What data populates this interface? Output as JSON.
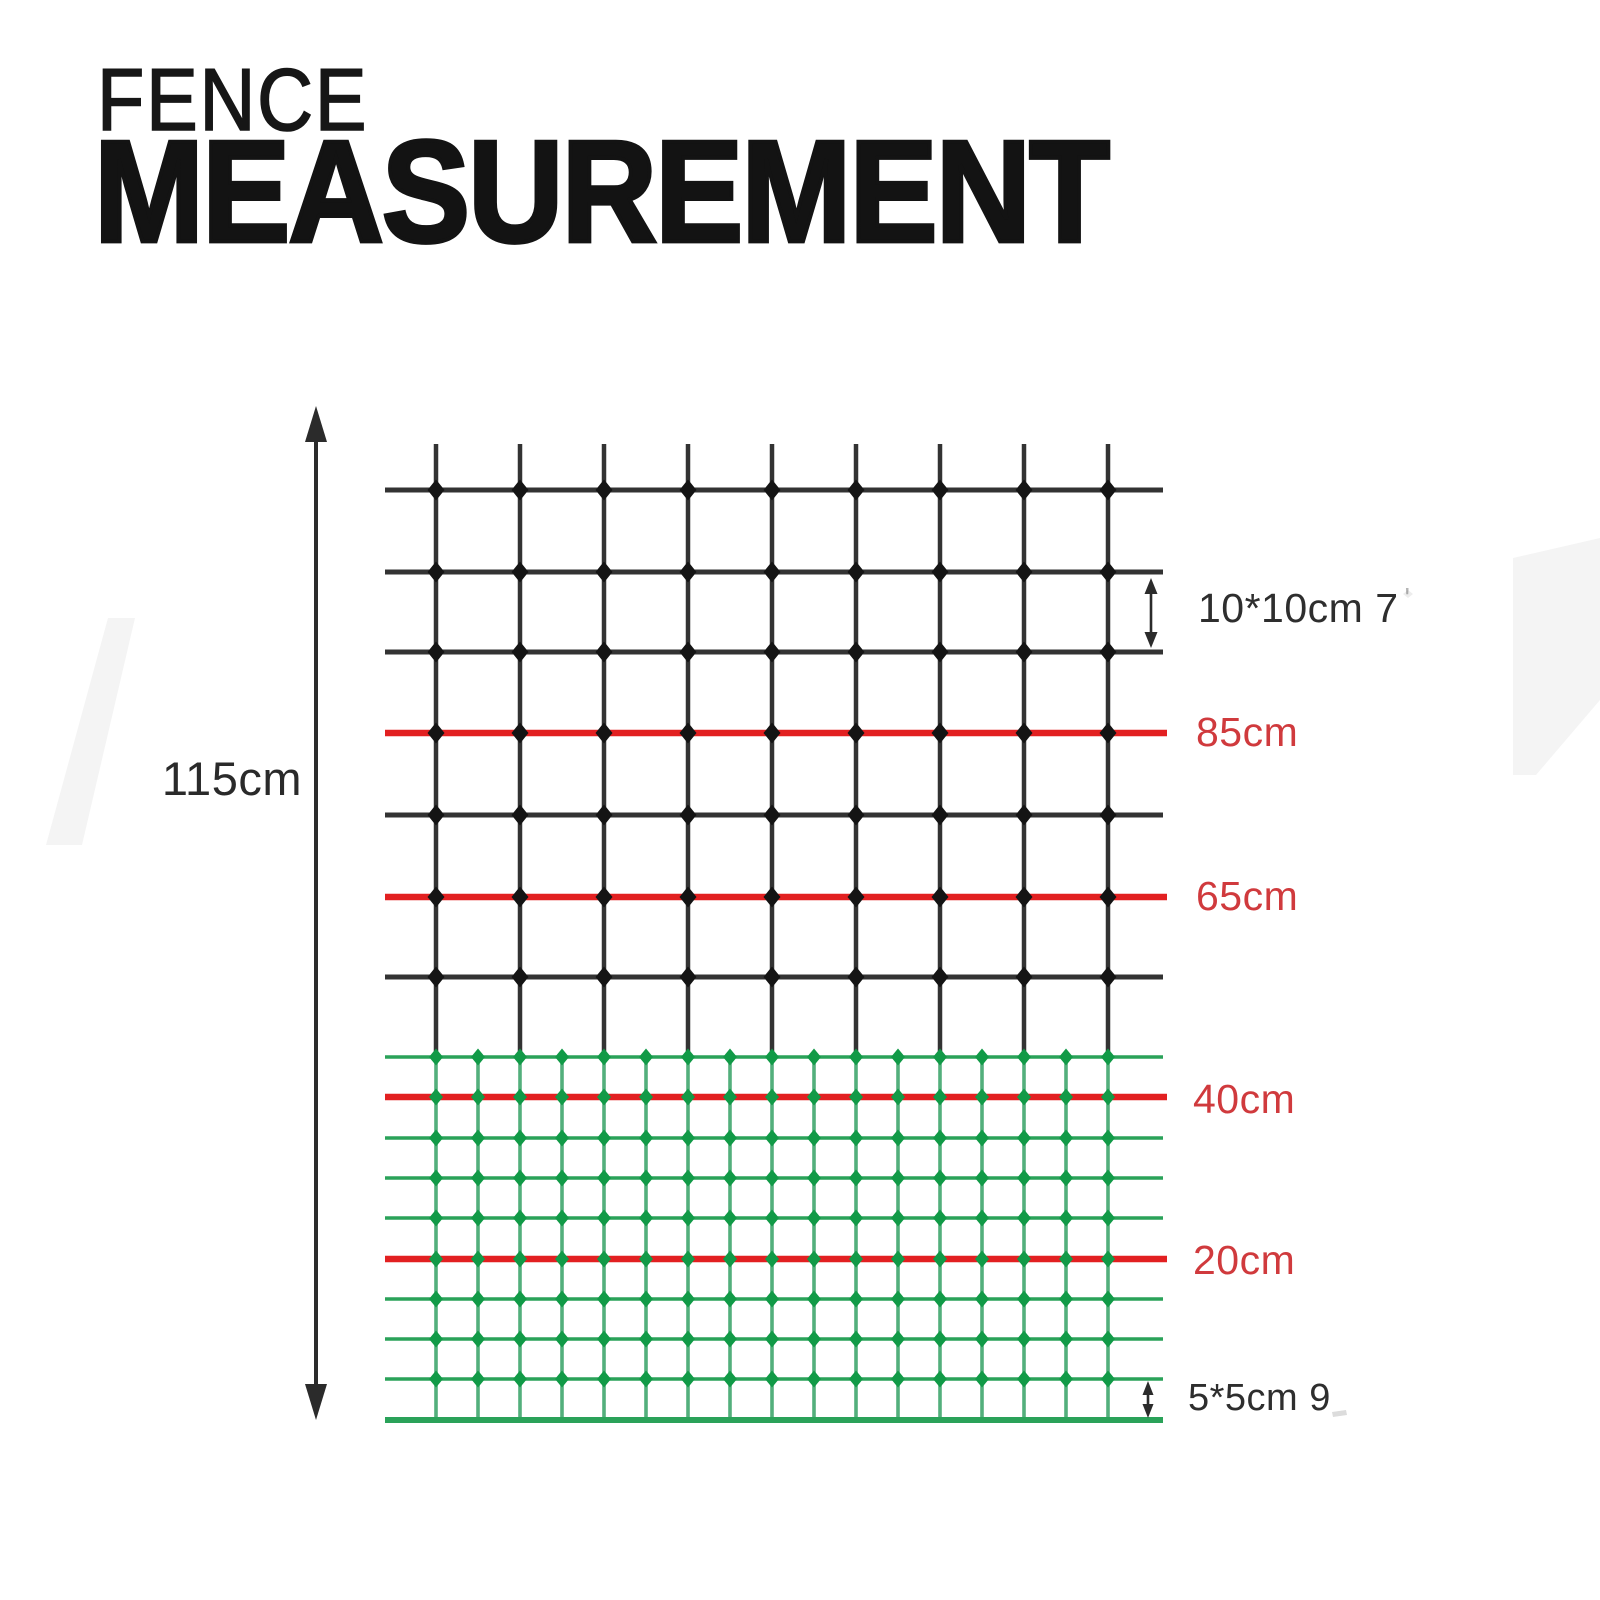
{
  "title": {
    "line1": "FENCE",
    "line2": "MEASUREMENT"
  },
  "measurements": {
    "total_height": "115cm",
    "large_mesh": "10*10cm 7",
    "large_mesh_tick": "'",
    "marker_85": "85cm",
    "marker_65": "65cm",
    "marker_40": "40cm",
    "marker_20": "20cm",
    "small_mesh": "5*5cm 9"
  },
  "diagram_structure": {
    "type": "fence-mesh-diagram",
    "total_height_cm": 115,
    "upper_mesh": {
      "cell_size": "10*10cm",
      "wire_color_name": "black",
      "vertical_wires": 9,
      "horizontal_wires": 7,
      "red_marker_rows": [
        "85cm",
        "65cm"
      ]
    },
    "lower_mesh": {
      "cell_size": "5*5cm",
      "wire_color_name": "green",
      "vertical_wires": 17,
      "horizontal_wires": 10,
      "red_marker_rows": [
        "40cm",
        "20cm"
      ]
    },
    "red_marker_heights_cm": [
      85,
      65,
      40,
      20
    ]
  },
  "colors": {
    "title": "#131313",
    "black_wire": "#333333",
    "black_dot": "#141414",
    "green_wire": "#2aa259",
    "green_wire_light": "#53af7c",
    "green_dot": "#119a47",
    "red_wire": "#e22021",
    "red_text": "#d03a3d",
    "black_text": "#2e2e2e",
    "arrow": "#2b2b2b",
    "watermark": "#f4f4f4"
  }
}
